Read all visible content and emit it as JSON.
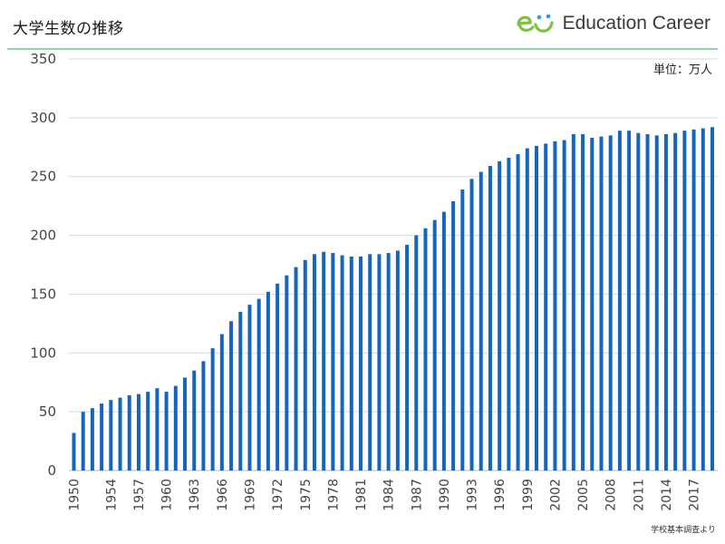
{
  "header": {
    "title": "大学生数の推移",
    "brand": "Education Career",
    "accent_color": "#8fd3a6",
    "logo_colors": [
      "#7dc242",
      "#2b9cd8"
    ]
  },
  "unit_label": "単位：万人",
  "source_label": "学校基本調査より",
  "chart_data": {
    "type": "bar",
    "title": "大学生数の推移",
    "xlabel": "",
    "ylabel": "",
    "ylim": [
      0,
      350
    ],
    "yticks": [
      0,
      50,
      100,
      150,
      200,
      250,
      300,
      350
    ],
    "bar_color": "#1565c0",
    "grid": true,
    "categories": [
      1950,
      1951,
      1952,
      1953,
      1954,
      1955,
      1956,
      1957,
      1958,
      1959,
      1960,
      1961,
      1962,
      1963,
      1964,
      1965,
      1966,
      1967,
      1968,
      1969,
      1970,
      1971,
      1972,
      1973,
      1974,
      1975,
      1976,
      1977,
      1978,
      1979,
      1980,
      1981,
      1982,
      1983,
      1984,
      1985,
      1986,
      1987,
      1988,
      1989,
      1990,
      1991,
      1992,
      1993,
      1994,
      1995,
      1996,
      1997,
      1998,
      1999,
      2000,
      2001,
      2002,
      2003,
      2004,
      2005,
      2006,
      2007,
      2008,
      2009,
      2010,
      2011,
      2012,
      2013,
      2014,
      2015,
      2016,
      2017,
      2018,
      2019
    ],
    "x_tick_labels": [
      "1950",
      "1954",
      "1957",
      "1960",
      "1963",
      "1966",
      "1969",
      "1972",
      "1975",
      "1978",
      "1981",
      "1984",
      "1987",
      "1990",
      "1993",
      "1996",
      "1999",
      "2002",
      "2005",
      "2008",
      "2011",
      "2014",
      "2017"
    ],
    "values": [
      32,
      50,
      53,
      57,
      60,
      62,
      64,
      65,
      67,
      70,
      67,
      72,
      79,
      85,
      93,
      104,
      116,
      127,
      135,
      141,
      146,
      152,
      159,
      166,
      173,
      179,
      184,
      186,
      185,
      183,
      182,
      182,
      184,
      184,
      185,
      187,
      192,
      200,
      206,
      213,
      220,
      229,
      239,
      248,
      254,
      259,
      263,
      266,
      269,
      274,
      276,
      278,
      280,
      281,
      286,
      286,
      283,
      284,
      285,
      289,
      289,
      287,
      286,
      285,
      286,
      287,
      289,
      290,
      291,
      292
    ]
  }
}
